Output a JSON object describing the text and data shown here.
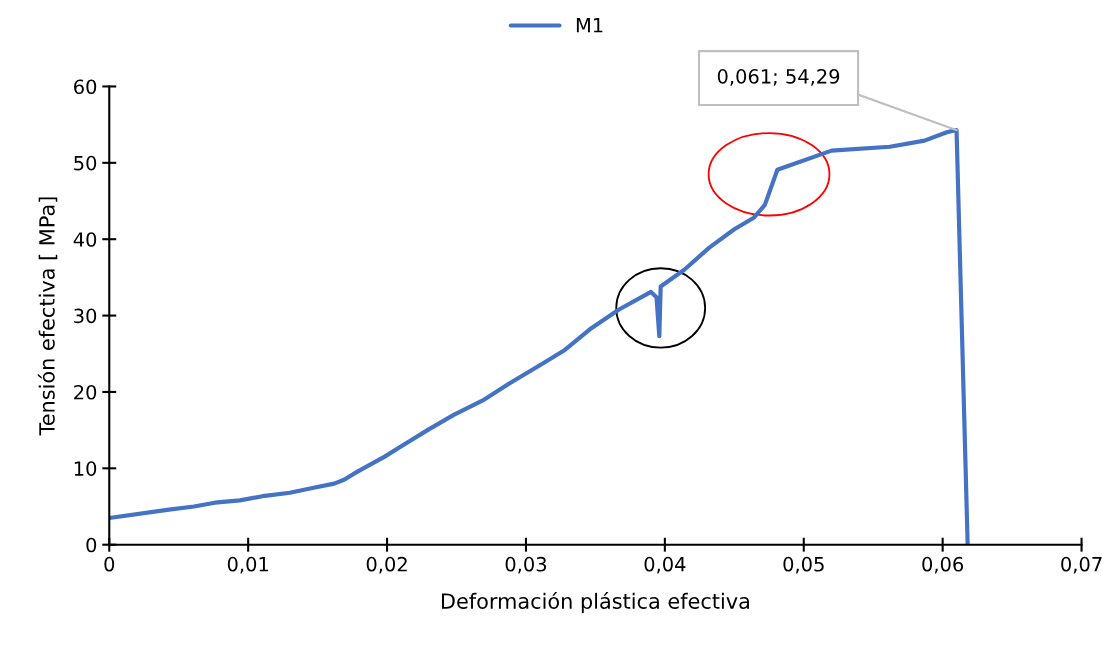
{
  "chart_data": {
    "type": "line",
    "xlabel": "Deformación plástica efectiva",
    "ylabel": "Tensión efectiva [ MPa]",
    "legend": "top",
    "series": [
      {
        "name": "M1",
        "color": "#4472c4",
        "x": [
          0,
          0.0043,
          0.0061,
          0.0076,
          0.0094,
          0.0112,
          0.013,
          0.0148,
          0.0162,
          0.0169,
          0.0179,
          0.0198,
          0.0212,
          0.023,
          0.0248,
          0.027,
          0.0288,
          0.031,
          0.0328,
          0.0346,
          0.0367,
          0.039,
          0.0394,
          0.0396,
          0.0397,
          0.0414,
          0.0432,
          0.045,
          0.0464,
          0.0472,
          0.0481,
          0.052,
          0.0562,
          0.0587,
          0.0603,
          0.061,
          0.0618
        ],
        "values": [
          3.5,
          4.6,
          5.0,
          5.5,
          5.8,
          6.4,
          6.8,
          7.5,
          8.0,
          8.5,
          9.6,
          11.5,
          13.1,
          15.1,
          17.0,
          19.0,
          21.1,
          23.5,
          25.5,
          28.2,
          30.8,
          33.1,
          32.4,
          27.3,
          33.8,
          36.0,
          38.9,
          41.3,
          42.8,
          44.5,
          49.1,
          51.6,
          52.1,
          52.9,
          54.0,
          54.29,
          0
        ]
      }
    ],
    "annotations": [
      {
        "text": "0,061; 54,29",
        "x": 0.061,
        "y": 54.29
      }
    ],
    "xlim": [
      0,
      0.07
    ],
    "ylim": [
      0,
      60
    ],
    "xticks": [
      0,
      {
        "value": 0.01,
        "label": "0,01"
      },
      {
        "value": 0.02,
        "label": "0,02"
      },
      {
        "value": 0.03,
        "label": "0,03"
      },
      {
        "value": 0.04,
        "label": "0,04"
      },
      {
        "value": 0.05,
        "label": "0,05"
      },
      {
        "value": 0.06,
        "label": "0,06"
      },
      {
        "value": 0.07,
        "label": "0,07"
      }
    ],
    "yticks": [
      0,
      10,
      20,
      30,
      40,
      50,
      60
    ],
    "grid": false,
    "marker": "none",
    "line_style": "solid"
  }
}
